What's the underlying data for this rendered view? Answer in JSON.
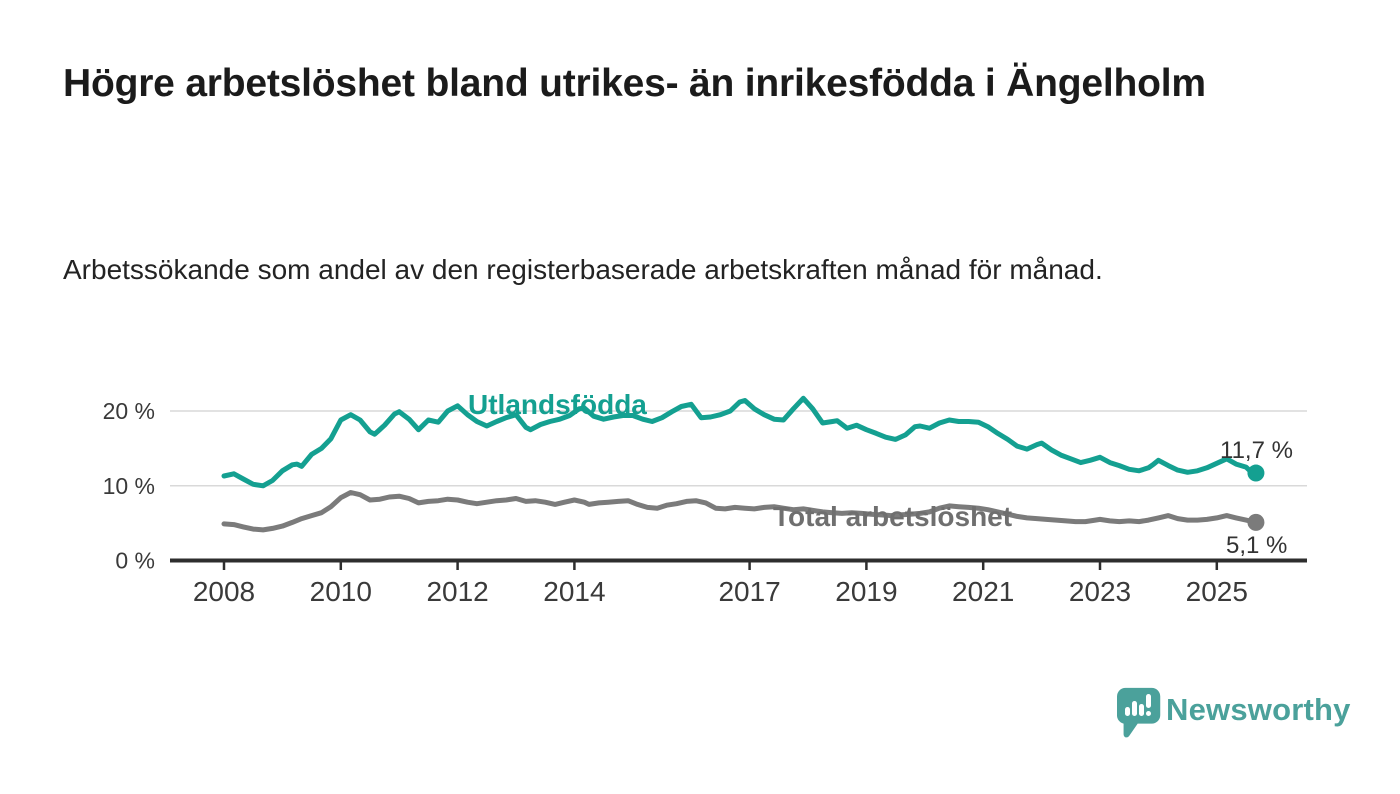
{
  "chart_data": {
    "type": "line",
    "title": "Högre arbetslöshet bland utrikes- än inrikesfödda i Ängelholm",
    "subtitle": "Arbetssökande som andel av den registerbaserade arbetskraften månad för månad.",
    "x_unit": "year (monthly observations)",
    "y_unit": "percent of registered labour force",
    "xlim": [
      2007.1,
      2026.5
    ],
    "ylim": [
      0,
      23
    ],
    "grid": "horizontal-only",
    "legend_position": "inline-labels-on-lines",
    "x_tick_labels": [
      "2008",
      "2010",
      "2012",
      "2014",
      "2017",
      "2019",
      "2021",
      "2023",
      "2025"
    ],
    "x_tick_years": [
      2008,
      2010,
      2012,
      2014,
      2017,
      2019,
      2021,
      2023,
      2025
    ],
    "y_ticks": [
      {
        "value": 20,
        "label": "20 %"
      },
      {
        "value": 10,
        "label": "10 %"
      },
      {
        "value": 0,
        "label": "0 %"
      }
    ],
    "series": [
      {
        "name": "Utlandsfödda",
        "color": "#14a091",
        "line_width": 5,
        "end_dot": true,
        "end_label": "11,7 %",
        "end_value": 11.7,
        "points": [
          [
            2008.0,
            11.3
          ],
          [
            2008.17,
            11.6
          ],
          [
            2008.33,
            10.9
          ],
          [
            2008.5,
            10.2
          ],
          [
            2008.67,
            10.0
          ],
          [
            2008.83,
            10.7
          ],
          [
            2009.0,
            12.0
          ],
          [
            2009.17,
            12.8
          ],
          [
            2009.25,
            12.9
          ],
          [
            2009.33,
            12.6
          ],
          [
            2009.5,
            14.2
          ],
          [
            2009.67,
            15.0
          ],
          [
            2009.83,
            16.3
          ],
          [
            2010.0,
            18.8
          ],
          [
            2010.17,
            19.5
          ],
          [
            2010.33,
            18.8
          ],
          [
            2010.5,
            17.2
          ],
          [
            2010.58,
            16.9
          ],
          [
            2010.75,
            18.1
          ],
          [
            2010.92,
            19.6
          ],
          [
            2011.0,
            19.9
          ],
          [
            2011.17,
            18.9
          ],
          [
            2011.33,
            17.5
          ],
          [
            2011.5,
            18.8
          ],
          [
            2011.67,
            18.5
          ],
          [
            2011.83,
            20.0
          ],
          [
            2012.0,
            20.7
          ],
          [
            2012.17,
            19.5
          ],
          [
            2012.33,
            18.6
          ],
          [
            2012.5,
            18.0
          ],
          [
            2012.67,
            18.6
          ],
          [
            2012.83,
            19.1
          ],
          [
            2013.0,
            19.5
          ],
          [
            2013.17,
            17.8
          ],
          [
            2013.25,
            17.5
          ],
          [
            2013.42,
            18.2
          ],
          [
            2013.58,
            18.6
          ],
          [
            2013.75,
            18.9
          ],
          [
            2013.92,
            19.4
          ],
          [
            2014.08,
            20.3
          ],
          [
            2014.17,
            20.4
          ],
          [
            2014.33,
            19.3
          ],
          [
            2014.5,
            18.9
          ],
          [
            2014.67,
            19.2
          ],
          [
            2014.83,
            19.4
          ],
          [
            2015.0,
            19.4
          ],
          [
            2015.17,
            18.9
          ],
          [
            2015.33,
            18.6
          ],
          [
            2015.5,
            19.1
          ],
          [
            2015.67,
            19.9
          ],
          [
            2015.83,
            20.6
          ],
          [
            2016.0,
            20.9
          ],
          [
            2016.17,
            19.1
          ],
          [
            2016.33,
            19.2
          ],
          [
            2016.5,
            19.5
          ],
          [
            2016.67,
            20.0
          ],
          [
            2016.83,
            21.2
          ],
          [
            2016.92,
            21.4
          ],
          [
            2017.08,
            20.3
          ],
          [
            2017.25,
            19.5
          ],
          [
            2017.42,
            18.9
          ],
          [
            2017.58,
            18.8
          ],
          [
            2017.75,
            20.3
          ],
          [
            2017.92,
            21.7
          ],
          [
            2018.08,
            20.3
          ],
          [
            2018.25,
            18.4
          ],
          [
            2018.42,
            18.6
          ],
          [
            2018.5,
            18.7
          ],
          [
            2018.67,
            17.7
          ],
          [
            2018.83,
            18.1
          ],
          [
            2019.0,
            17.5
          ],
          [
            2019.17,
            17.0
          ],
          [
            2019.33,
            16.5
          ],
          [
            2019.5,
            16.2
          ],
          [
            2019.67,
            16.8
          ],
          [
            2019.83,
            17.9
          ],
          [
            2019.92,
            18.0
          ],
          [
            2020.08,
            17.7
          ],
          [
            2020.25,
            18.4
          ],
          [
            2020.42,
            18.8
          ],
          [
            2020.58,
            18.6
          ],
          [
            2020.75,
            18.6
          ],
          [
            2020.92,
            18.5
          ],
          [
            2021.08,
            17.9
          ],
          [
            2021.25,
            17.0
          ],
          [
            2021.42,
            16.2
          ],
          [
            2021.58,
            15.3
          ],
          [
            2021.75,
            14.9
          ],
          [
            2021.92,
            15.5
          ],
          [
            2022.0,
            15.7
          ],
          [
            2022.17,
            14.8
          ],
          [
            2022.33,
            14.1
          ],
          [
            2022.5,
            13.6
          ],
          [
            2022.67,
            13.1
          ],
          [
            2022.83,
            13.4
          ],
          [
            2023.0,
            13.8
          ],
          [
            2023.17,
            13.1
          ],
          [
            2023.33,
            12.7
          ],
          [
            2023.5,
            12.2
          ],
          [
            2023.67,
            12.0
          ],
          [
            2023.83,
            12.4
          ],
          [
            2023.92,
            12.9
          ],
          [
            2024.0,
            13.4
          ],
          [
            2024.17,
            12.7
          ],
          [
            2024.33,
            12.1
          ],
          [
            2024.5,
            11.8
          ],
          [
            2024.67,
            12.0
          ],
          [
            2024.83,
            12.4
          ],
          [
            2025.0,
            13.0
          ],
          [
            2025.17,
            13.6
          ],
          [
            2025.33,
            12.9
          ],
          [
            2025.5,
            12.5
          ],
          [
            2025.58,
            11.9
          ],
          [
            2025.67,
            11.7
          ]
        ]
      },
      {
        "name": "Total arbetslöshet",
        "color": "#7b7b7b",
        "line_width": 5,
        "end_dot": true,
        "end_label": "5,1 %",
        "end_value": 5.1,
        "points": [
          [
            2008.0,
            4.9
          ],
          [
            2008.17,
            4.8
          ],
          [
            2008.33,
            4.5
          ],
          [
            2008.5,
            4.2
          ],
          [
            2008.67,
            4.1
          ],
          [
            2008.83,
            4.3
          ],
          [
            2009.0,
            4.6
          ],
          [
            2009.17,
            5.1
          ],
          [
            2009.33,
            5.6
          ],
          [
            2009.5,
            6.0
          ],
          [
            2009.67,
            6.4
          ],
          [
            2009.83,
            7.2
          ],
          [
            2010.0,
            8.4
          ],
          [
            2010.17,
            9.1
          ],
          [
            2010.33,
            8.8
          ],
          [
            2010.5,
            8.1
          ],
          [
            2010.67,
            8.2
          ],
          [
            2010.83,
            8.5
          ],
          [
            2011.0,
            8.6
          ],
          [
            2011.17,
            8.3
          ],
          [
            2011.33,
            7.7
          ],
          [
            2011.5,
            7.9
          ],
          [
            2011.67,
            8.0
          ],
          [
            2011.83,
            8.2
          ],
          [
            2012.0,
            8.1
          ],
          [
            2012.17,
            7.8
          ],
          [
            2012.33,
            7.6
          ],
          [
            2012.5,
            7.8
          ],
          [
            2012.67,
            8.0
          ],
          [
            2012.83,
            8.1
          ],
          [
            2013.0,
            8.3
          ],
          [
            2013.17,
            7.9
          ],
          [
            2013.33,
            8.0
          ],
          [
            2013.5,
            7.8
          ],
          [
            2013.67,
            7.5
          ],
          [
            2013.83,
            7.8
          ],
          [
            2014.0,
            8.1
          ],
          [
            2014.17,
            7.8
          ],
          [
            2014.25,
            7.5
          ],
          [
            2014.42,
            7.7
          ],
          [
            2014.58,
            7.8
          ],
          [
            2014.75,
            7.9
          ],
          [
            2014.92,
            8.0
          ],
          [
            2015.08,
            7.5
          ],
          [
            2015.25,
            7.1
          ],
          [
            2015.42,
            7.0
          ],
          [
            2015.58,
            7.4
          ],
          [
            2015.75,
            7.6
          ],
          [
            2015.92,
            7.9
          ],
          [
            2016.08,
            8.0
          ],
          [
            2016.25,
            7.7
          ],
          [
            2016.42,
            7.0
          ],
          [
            2016.58,
            6.9
          ],
          [
            2016.75,
            7.1
          ],
          [
            2016.92,
            7.0
          ],
          [
            2017.08,
            6.9
          ],
          [
            2017.25,
            7.1
          ],
          [
            2017.42,
            7.2
          ],
          [
            2017.58,
            7.0
          ],
          [
            2017.75,
            6.8
          ],
          [
            2017.92,
            6.9
          ],
          [
            2018.08,
            6.7
          ],
          [
            2018.25,
            6.5
          ],
          [
            2018.42,
            6.4
          ],
          [
            2018.58,
            6.3
          ],
          [
            2018.75,
            6.4
          ],
          [
            2018.92,
            6.3
          ],
          [
            2019.08,
            6.2
          ],
          [
            2019.25,
            6.1
          ],
          [
            2019.42,
            6.0
          ],
          [
            2019.58,
            6.1
          ],
          [
            2019.75,
            6.2
          ],
          [
            2019.92,
            6.3
          ],
          [
            2020.08,
            6.5
          ],
          [
            2020.25,
            7.0
          ],
          [
            2020.42,
            7.3
          ],
          [
            2020.58,
            7.2
          ],
          [
            2020.75,
            7.1
          ],
          [
            2020.92,
            7.0
          ],
          [
            2021.08,
            6.8
          ],
          [
            2021.25,
            6.5
          ],
          [
            2021.42,
            6.2
          ],
          [
            2021.58,
            5.9
          ],
          [
            2021.75,
            5.7
          ],
          [
            2021.92,
            5.6
          ],
          [
            2022.08,
            5.5
          ],
          [
            2022.25,
            5.4
          ],
          [
            2022.42,
            5.3
          ],
          [
            2022.58,
            5.2
          ],
          [
            2022.75,
            5.2
          ],
          [
            2022.92,
            5.4
          ],
          [
            2023.0,
            5.5
          ],
          [
            2023.17,
            5.3
          ],
          [
            2023.33,
            5.2
          ],
          [
            2023.5,
            5.3
          ],
          [
            2023.67,
            5.2
          ],
          [
            2023.83,
            5.4
          ],
          [
            2024.0,
            5.7
          ],
          [
            2024.17,
            6.0
          ],
          [
            2024.33,
            5.6
          ],
          [
            2024.5,
            5.4
          ],
          [
            2024.67,
            5.4
          ],
          [
            2024.83,
            5.5
          ],
          [
            2025.0,
            5.7
          ],
          [
            2025.17,
            6.0
          ],
          [
            2025.33,
            5.7
          ],
          [
            2025.5,
            5.4
          ],
          [
            2025.67,
            5.1
          ]
        ]
      }
    ]
  },
  "colors": {
    "background": "#ffffff",
    "axis": "#2e2e2e",
    "gridline": "#d9d9d9",
    "tick_text": "#3a3a3a",
    "value_label_text": "#333333",
    "series_teal": "#14a091",
    "series_gray": "#7b7b7b",
    "brand_teal": "#4ba19b"
  },
  "footer": {
    "brand_name": "Newsworthy"
  }
}
